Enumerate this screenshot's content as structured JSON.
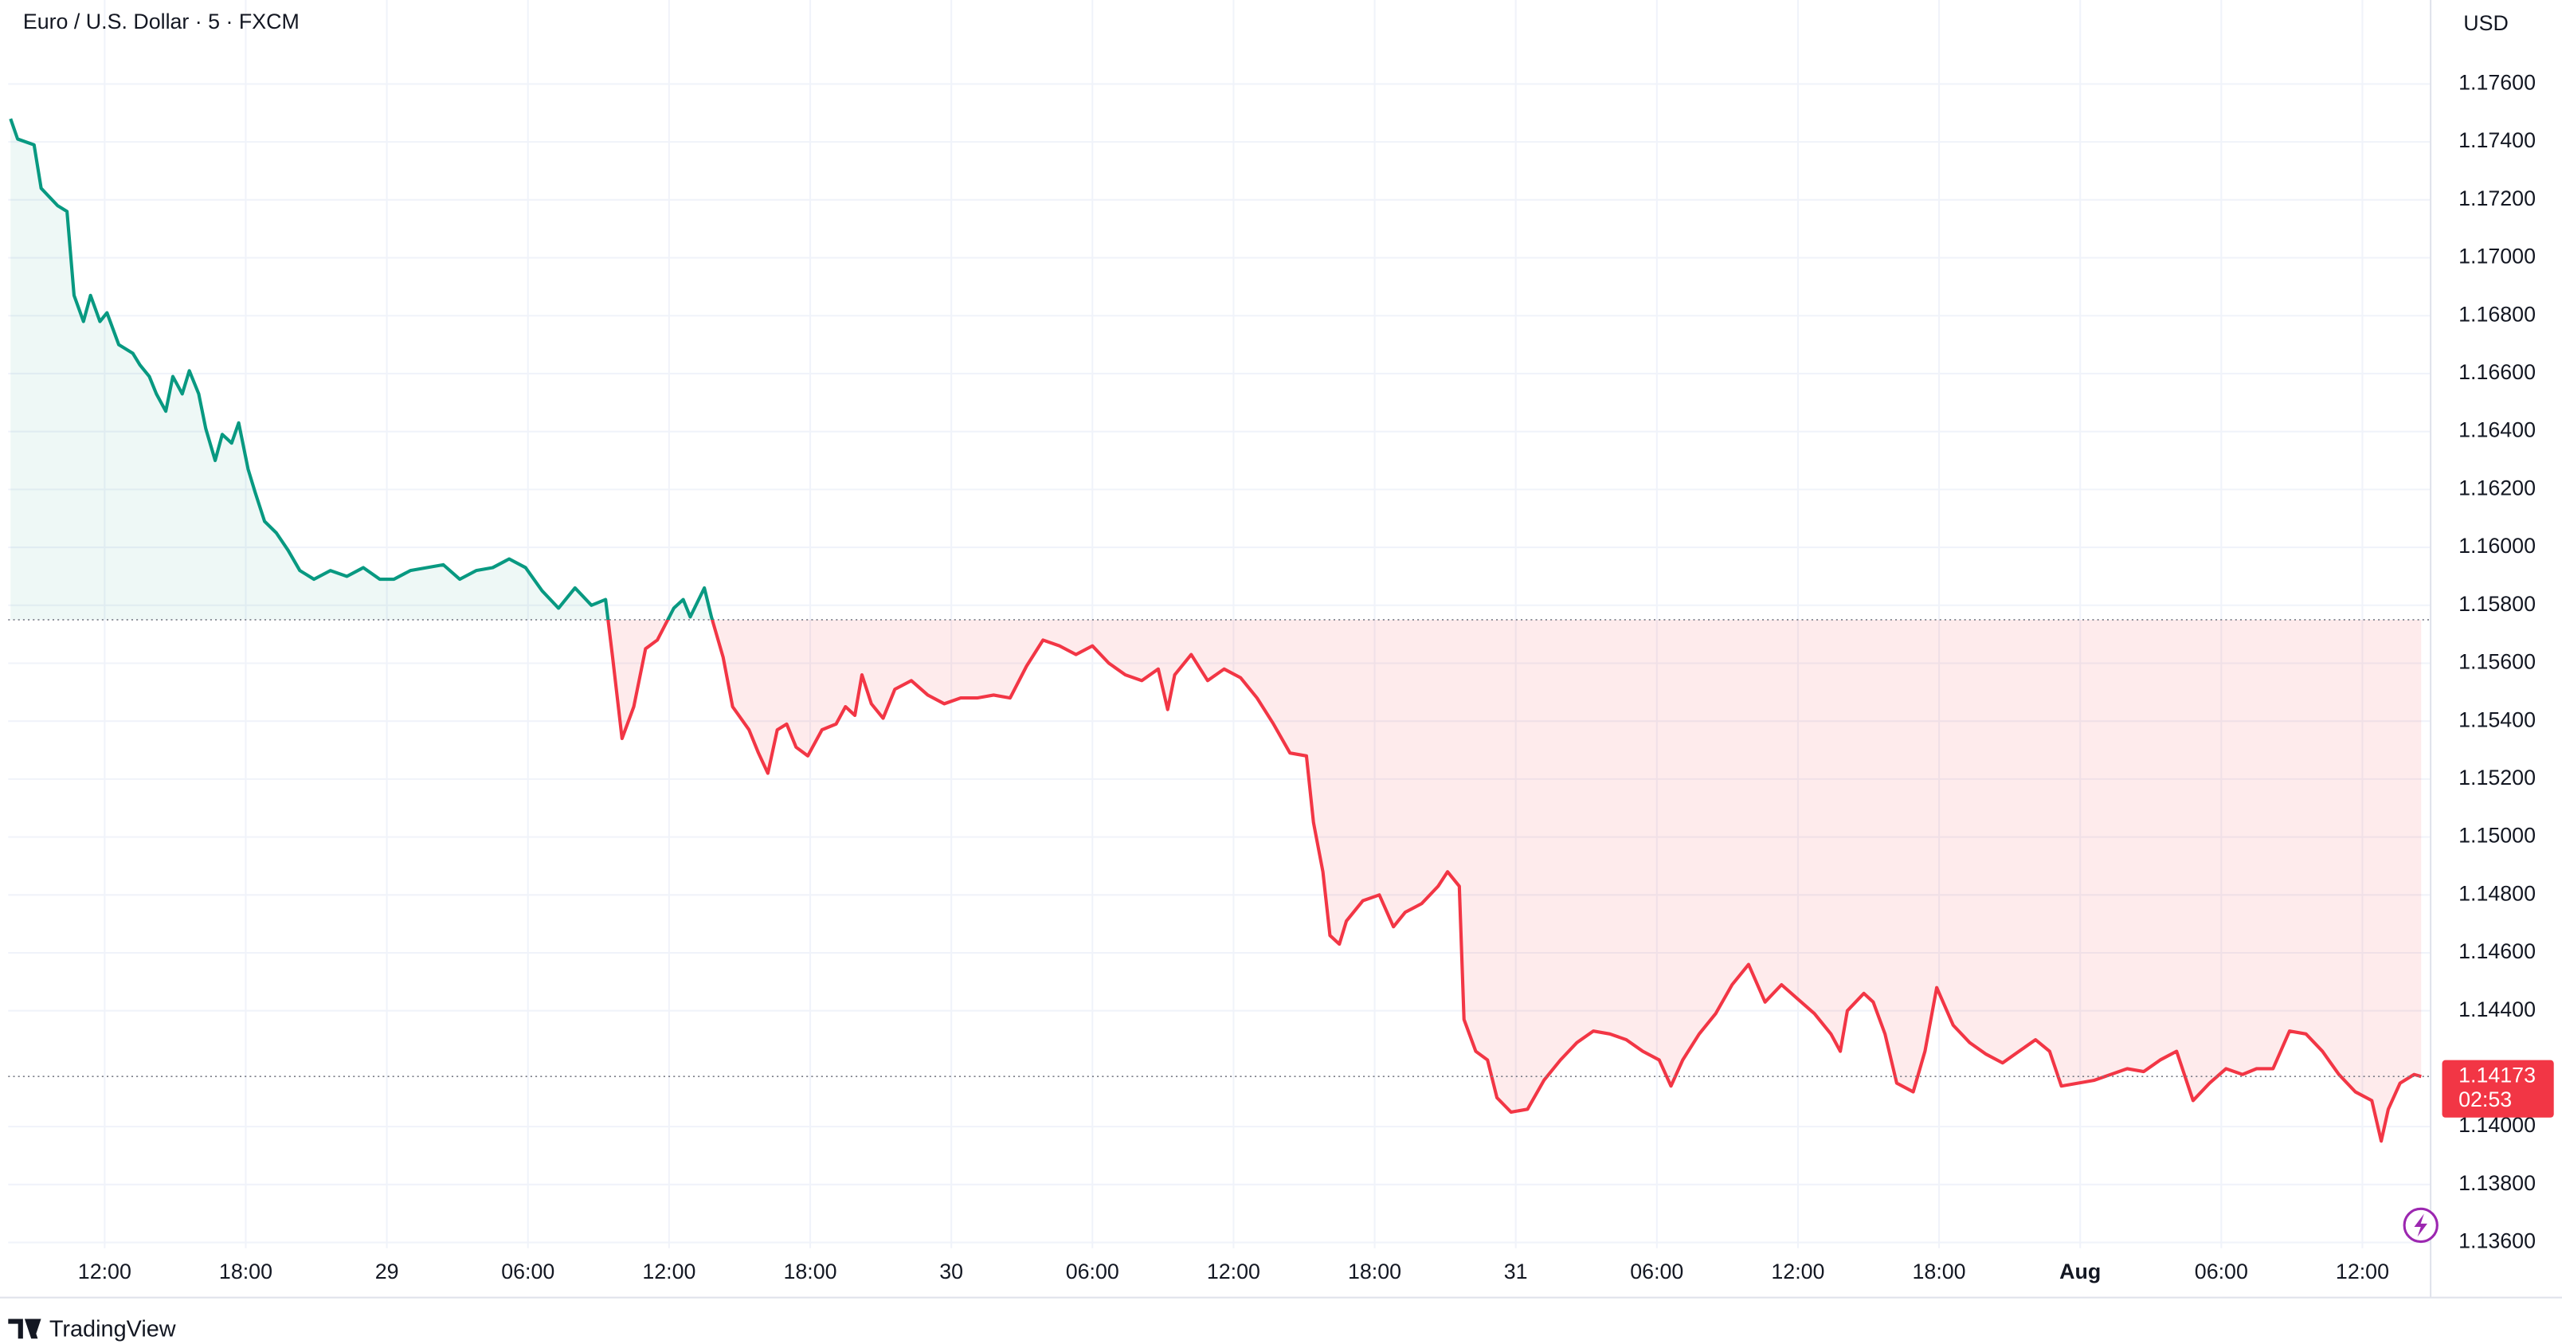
{
  "chart_data": {
    "type": "baseline_line",
    "title": "Euro / U.S. Dollar · 5 · FXCM",
    "currency": "USD",
    "countdown": "02:53",
    "brand": "TradingView",
    "baseline": 1.1575,
    "color_above": "#089981",
    "color_below": "#f23645",
    "grid": true,
    "xlim": [
      7.9,
      110.9
    ],
    "ylim": [
      1.1358,
      1.1789
    ],
    "xticks": [
      {
        "value": 12,
        "label": "12:00"
      },
      {
        "value": 18,
        "label": "18:00"
      },
      {
        "value": 24,
        "label": "29"
      },
      {
        "value": 30,
        "label": "06:00"
      },
      {
        "value": 36,
        "label": "12:00"
      },
      {
        "value": 42,
        "label": "18:00"
      },
      {
        "value": 48,
        "label": "30"
      },
      {
        "value": 54,
        "label": "06:00"
      },
      {
        "value": 60,
        "label": "12:00"
      },
      {
        "value": 66,
        "label": "18:00"
      },
      {
        "value": 72,
        "label": "31"
      },
      {
        "value": 78,
        "label": "06:00"
      },
      {
        "value": 84,
        "label": "12:00"
      },
      {
        "value": 90,
        "label": "18:00"
      },
      {
        "value": 96,
        "label": "Aug"
      },
      {
        "value": 102,
        "label": "06:00"
      },
      {
        "value": 108,
        "label": "12:00"
      }
    ],
    "yticks": [
      {
        "value": 1.176,
        "label": "1.17600"
      },
      {
        "value": 1.174,
        "label": "1.17400"
      },
      {
        "value": 1.172,
        "label": "1.17200"
      },
      {
        "value": 1.17,
        "label": "1.17000"
      },
      {
        "value": 1.168,
        "label": "1.16800"
      },
      {
        "value": 1.166,
        "label": "1.16600"
      },
      {
        "value": 1.164,
        "label": "1.16400"
      },
      {
        "value": 1.162,
        "label": "1.16200"
      },
      {
        "value": 1.16,
        "label": "1.16000"
      },
      {
        "value": 1.158,
        "label": "1.15800"
      },
      {
        "value": 1.156,
        "label": "1.15600"
      },
      {
        "value": 1.154,
        "label": "1.15400"
      },
      {
        "value": 1.152,
        "label": "1.15200"
      },
      {
        "value": 1.15,
        "label": "1.15000"
      },
      {
        "value": 1.148,
        "label": "1.14800"
      },
      {
        "value": 1.146,
        "label": "1.14600"
      },
      {
        "value": 1.144,
        "label": "1.14400"
      },
      {
        "value": 1.14,
        "label": "1.14000"
      },
      {
        "value": 1.138,
        "label": "1.13800"
      },
      {
        "value": 1.136,
        "label": "1.13600"
      }
    ],
    "x": [
      8.0,
      8.3,
      9.0,
      9.3,
      10.0,
      10.4,
      10.7,
      11.1,
      11.4,
      11.8,
      12.1,
      12.6,
      13.2,
      13.5,
      13.9,
      14.2,
      14.6,
      14.9,
      15.3,
      15.6,
      16.0,
      16.3,
      16.7,
      17.0,
      17.4,
      17.7,
      18.1,
      18.4,
      18.8,
      19.3,
      19.8,
      20.3,
      20.9,
      21.6,
      22.3,
      23.0,
      23.7,
      24.3,
      25.0,
      25.7,
      26.4,
      27.1,
      27.8,
      28.5,
      29.2,
      29.9,
      30.6,
      31.3,
      32.0,
      32.7,
      33.3,
      33.6,
      34.0,
      34.5,
      35.0,
      35.5,
      36.2,
      36.6,
      36.9,
      37.5,
      37.8,
      38.3,
      38.7,
      39.4,
      39.8,
      40.2,
      40.6,
      41.0,
      41.4,
      41.9,
      42.5,
      43.1,
      43.5,
      43.9,
      44.2,
      44.6,
      45.1,
      45.6,
      46.3,
      47.0,
      47.7,
      48.4,
      49.1,
      49.8,
      50.5,
      51.2,
      51.9,
      52.6,
      53.3,
      54.0,
      54.7,
      55.4,
      56.1,
      56.8,
      57.2,
      57.5,
      58.2,
      58.9,
      59.6,
      60.3,
      61.0,
      61.7,
      62.4,
      63.1,
      63.4,
      63.8,
      64.1,
      64.5,
      64.8,
      65.5,
      66.2,
      66.8,
      67.3,
      68.0,
      68.7,
      69.1,
      69.6,
      69.8,
      70.3,
      70.8,
      71.2,
      71.8,
      72.5,
      73.2,
      73.9,
      74.6,
      75.3,
      76.0,
      76.7,
      77.4,
      78.1,
      78.6,
      79.1,
      79.8,
      80.5,
      81.2,
      81.9,
      82.6,
      83.3,
      84.0,
      84.7,
      85.4,
      85.8,
      86.1,
      86.8,
      87.2,
      87.7,
      88.2,
      88.9,
      89.4,
      89.9,
      90.6,
      91.3,
      92.0,
      92.7,
      93.4,
      94.1,
      94.7,
      95.2,
      95.9,
      96.6,
      97.3,
      98.0,
      98.7,
      99.4,
      100.1,
      100.8,
      101.5,
      102.2,
      102.9,
      103.5,
      104.2,
      104.9,
      105.6,
      106.3,
      107.0,
      107.7,
      108.4,
      108.8,
      109.1,
      109.6,
      110.2,
      110.5
    ],
    "values": [
      1.1748,
      1.1741,
      1.1739,
      1.1724,
      1.1718,
      1.1716,
      1.1687,
      1.1678,
      1.1687,
      1.1678,
      1.1681,
      1.167,
      1.1667,
      1.1663,
      1.1659,
      1.1653,
      1.1647,
      1.1659,
      1.1653,
      1.1661,
      1.1653,
      1.1641,
      1.163,
      1.1639,
      1.1636,
      1.1643,
      1.1627,
      1.1619,
      1.1609,
      1.1605,
      1.1599,
      1.1592,
      1.1589,
      1.1592,
      1.159,
      1.1593,
      1.1589,
      1.1589,
      1.1592,
      1.1593,
      1.1594,
      1.1589,
      1.1592,
      1.1593,
      1.1596,
      1.1593,
      1.1585,
      1.1579,
      1.1586,
      1.158,
      1.1582,
      1.1562,
      1.1534,
      1.1545,
      1.1565,
      1.1568,
      1.1579,
      1.1582,
      1.1576,
      1.1586,
      1.1576,
      1.1562,
      1.1545,
      1.1537,
      1.1529,
      1.1522,
      1.1537,
      1.1539,
      1.1531,
      1.1528,
      1.1537,
      1.1539,
      1.1545,
      1.1542,
      1.1556,
      1.1546,
      1.1541,
      1.1551,
      1.1554,
      1.1549,
      1.1546,
      1.1548,
      1.1548,
      1.1549,
      1.1548,
      1.1559,
      1.1568,
      1.1566,
      1.1563,
      1.1566,
      1.156,
      1.1556,
      1.1554,
      1.1558,
      1.1544,
      1.1556,
      1.1563,
      1.1554,
      1.1558,
      1.1555,
      1.1548,
      1.1539,
      1.1529,
      1.1528,
      1.1505,
      1.1488,
      1.1466,
      1.1463,
      1.1471,
      1.1478,
      1.148,
      1.1469,
      1.1474,
      1.1477,
      1.1483,
      1.1488,
      1.1483,
      1.1437,
      1.1426,
      1.1423,
      1.141,
      1.1405,
      1.1406,
      1.1416,
      1.1423,
      1.1429,
      1.1433,
      1.1432,
      1.143,
      1.1426,
      1.1423,
      1.1414,
      1.1423,
      1.1432,
      1.1439,
      1.1449,
      1.1456,
      1.1443,
      1.1449,
      1.1444,
      1.1439,
      1.1432,
      1.1426,
      1.144,
      1.1446,
      1.1443,
      1.1432,
      1.1415,
      1.1412,
      1.1426,
      1.1448,
      1.1435,
      1.1429,
      1.1425,
      1.1422,
      1.1426,
      1.143,
      1.1426,
      1.1414,
      1.1415,
      1.1416,
      1.1418,
      1.142,
      1.1419,
      1.1423,
      1.1426,
      1.1409,
      1.1415,
      1.142,
      1.1418,
      1.142,
      1.142,
      1.1433,
      1.1432,
      1.1426,
      1.1418,
      1.1412,
      1.1409,
      1.1395,
      1.1406,
      1.1415,
      1.1418,
      1.14173
    ]
  }
}
